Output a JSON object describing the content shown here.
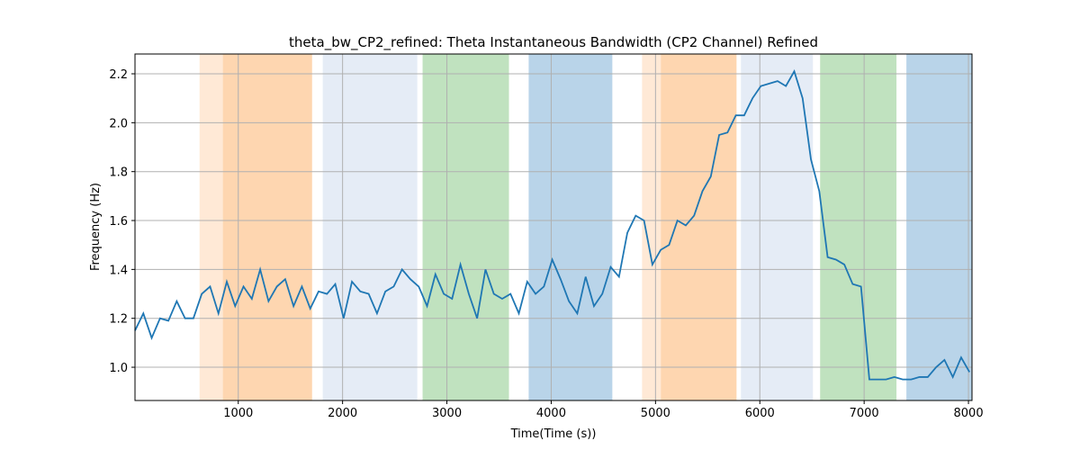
{
  "chart_data": {
    "type": "line",
    "title": "theta_bw_CP2_refined: Theta Instantaneous Bandwidth (CP2 Channel) Refined",
    "x_label": "Time(Time (s))",
    "y_label": "Frequency (Hz)",
    "xlim": [
      10,
      8034
    ],
    "ylim": [
      0.864,
      2.281
    ],
    "xticks": [
      1000,
      2000,
      3000,
      4000,
      5000,
      6000,
      7000,
      8000
    ],
    "yticks": [
      {
        "value": 1.0,
        "label": "1.0"
      },
      1.2,
      1.4,
      1.6,
      1.8,
      {
        "value": 2.0,
        "label": "2.0"
      },
      2.2
    ],
    "grid": true,
    "spans": [
      [
        629,
        1707
      ],
      [
        853,
        1707
      ],
      [
        1810,
        2716
      ],
      [
        2767,
        3595
      ],
      [
        3784,
        4586
      ],
      [
        4871,
        5776
      ],
      [
        5052,
        5776
      ],
      [
        5819,
        6509
      ],
      [
        6578,
        7310
      ],
      [
        7405,
        8034
      ]
    ],
    "span_colors": [
      "#ffe9d6",
      "#fed6b0",
      "#e5ecf6",
      "#c0e2bf",
      "#b9d4e9",
      "#ffe9d6",
      "#fed6b0",
      "#e5ecf6",
      "#c0e2bf",
      "#b9d4e9"
    ],
    "x": [
      10,
      90,
      170,
      250,
      330,
      410,
      490,
      570,
      650,
      730,
      810,
      890,
      970,
      1050,
      1130,
      1210,
      1290,
      1370,
      1450,
      1530,
      1610,
      1690,
      1770,
      1850,
      1930,
      2010,
      2090,
      2170,
      2250,
      2330,
      2410,
      2490,
      2570,
      2650,
      2730,
      2810,
      2890,
      2970,
      3050,
      3130,
      3210,
      3290,
      3370,
      3450,
      3530,
      3610,
      3690,
      3770,
      3850,
      3930,
      4010,
      4090,
      4170,
      4250,
      4330,
      4410,
      4490,
      4570,
      4650,
      4730,
      4810,
      4890,
      4970,
      5050,
      5130,
      5210,
      5290,
      5370,
      5450,
      5530,
      5610,
      5690,
      5770,
      5850,
      5930,
      6010,
      6090,
      6170,
      6250,
      6330,
      6410,
      6490,
      6570,
      6650,
      6730,
      6810,
      6890,
      6970,
      7050,
      7130,
      7210,
      7290,
      7370,
      7450,
      7530,
      7610,
      7690,
      7770,
      7850,
      7930,
      8010
    ],
    "series": [
      {
        "color": "#1f77b4",
        "values": [
          1.15,
          1.22,
          1.12,
          1.2,
          1.19,
          1.27,
          1.2,
          1.2,
          1.3,
          1.33,
          1.22,
          1.35,
          1.25,
          1.33,
          1.28,
          1.4,
          1.27,
          1.33,
          1.36,
          1.25,
          1.33,
          1.24,
          1.31,
          1.3,
          1.34,
          1.2,
          1.35,
          1.31,
          1.3,
          1.22,
          1.31,
          1.33,
          1.4,
          1.36,
          1.33,
          1.25,
          1.38,
          1.3,
          1.28,
          1.42,
          1.3,
          1.2,
          1.4,
          1.3,
          1.28,
          1.3,
          1.22,
          1.35,
          1.3,
          1.33,
          1.44,
          1.36,
          1.27,
          1.22,
          1.37,
          1.25,
          1.3,
          1.41,
          1.37,
          1.55,
          1.62,
          1.6,
          1.42,
          1.48,
          1.5,
          1.6,
          1.58,
          1.62,
          1.72,
          1.78,
          1.95,
          1.96,
          2.03,
          2.03,
          2.1,
          2.15,
          2.16,
          2.17,
          2.15,
          2.21,
          2.1,
          1.85,
          1.72,
          1.45,
          1.44,
          1.42,
          1.34,
          1.33,
          0.95,
          0.95,
          0.95,
          0.96,
          0.95,
          0.95,
          0.96,
          0.96,
          1.0,
          1.03,
          0.96,
          1.04,
          0.98
        ]
      }
    ]
  }
}
